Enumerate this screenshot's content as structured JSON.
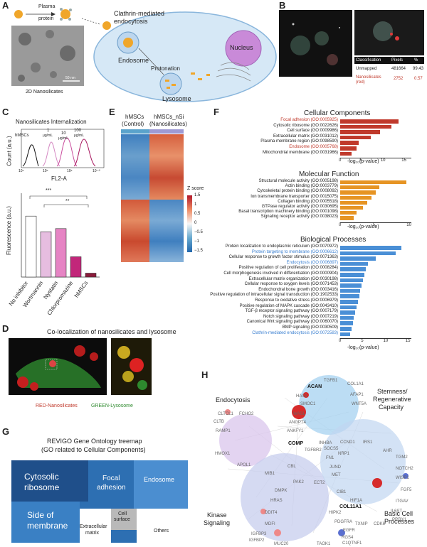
{
  "panels": {
    "a": "A",
    "b": "B",
    "c": "C",
    "d": "D",
    "e": "E",
    "f": "F",
    "g": "G",
    "h": "H"
  },
  "panel_a": {
    "plasma": "Plasma",
    "protein": "protein",
    "clathrin": "Clathrin-mediated",
    "endocytosis": "endocytosis",
    "nucleus": "Nucleus",
    "endosome": "Endosome",
    "protonation": "Protonation",
    "lysosome": "Lysosome",
    "nanosilicates": "2D Nanosilicates",
    "scale": "50 nm"
  },
  "panel_b": {
    "headers": [
      "Classification",
      "Pixels",
      "%"
    ],
    "rows": [
      {
        "c1": "Unmapped",
        "c2": "481664",
        "c3": "99.43"
      },
      {
        "c1": "Nanosilicates",
        "c1b": "(red)",
        "c2": "2752",
        "c3": "0.57"
      }
    ]
  },
  "panel_c": {
    "title": "Nanosilicates Internalization",
    "ylabel": "Count (a.u.)",
    "xlabel": "FL2-A",
    "peaks": [
      "hMSCs",
      "1",
      "μg/mL",
      "10",
      "μg/mL",
      "100",
      "μg/mL"
    ],
    "ticks": [
      "10⁴",
      "10⁵",
      "10⁶",
      "10⁷·²"
    ],
    "bar_ylabel": "Fluorescence (a.u.)",
    "sig1": "***",
    "sig2": "**",
    "bars": [
      {
        "label": "No inhibitor",
        "value": 0.78,
        "color": "#ffffff"
      },
      {
        "label": "Wortmannin",
        "value": 0.58,
        "color": "#e6bde0"
      },
      {
        "label": "Nystatin",
        "value": 0.62,
        "color": "#e684c4"
      },
      {
        "label": "Chlorpromazine",
        "value": 0.26,
        "color": "#c2277a"
      },
      {
        "label": "hMSCs",
        "value": 0.05,
        "color": "#8b1a3a"
      }
    ]
  },
  "panel_d": {
    "title": "Co-localization of nanosilicates and lysosome",
    "red": "RED-Nanosilicates",
    "green": "GREEN-Lysosome"
  },
  "panel_e": {
    "col1a": "hMSCs",
    "col1b": "(Control)",
    "col2a": "hMSCs_nSi",
    "col2b": "(Nanosilicates)",
    "zlabel": "Z score",
    "zticks": [
      "1.5",
      "1",
      "0.5",
      "0",
      "−0.5",
      "−1",
      "−1.5"
    ]
  },
  "panel_f": {
    "axis_label": "-log₁₀(p-value)",
    "cc": {
      "title": "Cellular Components",
      "color": "#c0392b",
      "ticks": [
        "0",
        "5",
        "10",
        "15"
      ],
      "xmax": 17,
      "terms": [
        {
          "label": "Focal adhesion (GO:0005925)",
          "value": 14,
          "hl": "red"
        },
        {
          "label": "Cytosolic ribosome (GO:0022626)",
          "value": 12.3,
          "hl": ""
        },
        {
          "label": "Cell surface (GO:0009986)",
          "value": 9.5,
          "hl": ""
        },
        {
          "label": "Extracellular matrix (GO:0031012)",
          "value": 7.3,
          "hl": ""
        },
        {
          "label": "Plasma membrane region (GO:0098590)",
          "value": 4.5,
          "hl": ""
        },
        {
          "label": "Endosome (GO:0005768)",
          "value": 3.9,
          "hl": "red"
        },
        {
          "label": "Mitochondrial membrane (GO:0031966)",
          "value": 2.7,
          "hl": ""
        }
      ]
    },
    "mf": {
      "title": "Molecular Function",
      "color": "#e69424",
      "ticks": [
        "0",
        "5",
        "10"
      ],
      "xmax": 10.5,
      "terms": [
        {
          "label": "Structural molecule activity (GO:0005198)",
          "value": 9.8
        },
        {
          "label": "Actin binding (GO:0003779)",
          "value": 5.8
        },
        {
          "label": "Cytoskeletal protein binding (GO:0008092)",
          "value": 5.2
        },
        {
          "label": "Ion transmembrane transporter (GO:0015075)",
          "value": 4.6
        },
        {
          "label": "Collagen binding (GO:0005518)",
          "value": 4.0
        },
        {
          "label": "GTPase regulator activity (GO:0030695)",
          "value": 3.4
        },
        {
          "label": "Basal transcription machinery binding (GO:0001098)",
          "value": 2.4
        },
        {
          "label": "Signaling receptor activity (GO:0038023)",
          "value": 2.0
        }
      ]
    },
    "bp": {
      "title": "Biological Processes",
      "color": "#4a8fd6",
      "ticks": [
        "0",
        "5",
        "10",
        "15"
      ],
      "xmax": 16,
      "terms": [
        {
          "label": "Protein localization to endoplasmic reticulum (GO:0070972)",
          "value": 13.8,
          "hl": ""
        },
        {
          "label": "Protein targeting to membrane (GO:0006612)",
          "value": 12.5,
          "hl": "blue"
        },
        {
          "label": "Cellular response to growth factor stimulus (GO:0071363)",
          "value": 8.0,
          "hl": ""
        },
        {
          "label": "Endocytosis (GO:0006897)",
          "value": 6.2,
          "hl": "blue"
        },
        {
          "label": "Positive regulation of cell proliferation (GO:0008284)",
          "value": 5.8,
          "hl": ""
        },
        {
          "label": "Cell morphogenesis involved in differentiation (GO:0000904)",
          "value": 5.4,
          "hl": ""
        },
        {
          "label": "Extracellular matrix organization (GO:0030198)",
          "value": 5.1,
          "hl": ""
        },
        {
          "label": "Cellular response to oxygen levels (GO:0071453)",
          "value": 4.8,
          "hl": ""
        },
        {
          "label": "Endochondral bone growth (GO:0003416)",
          "value": 4.5,
          "hl": ""
        },
        {
          "label": "Positive regulation of intracellular signal transduction (GO:1902533)",
          "value": 4.3,
          "hl": ""
        },
        {
          "label": "Response to oxidative stress (GO:0006979)",
          "value": 4.0,
          "hl": ""
        },
        {
          "label": "Positive regulation of MAPK cascade (GO:0043410)",
          "value": 3.7,
          "hl": ""
        },
        {
          "label": "TGF-β receptor signaling pathway (GO:0007179)",
          "value": 3.4,
          "hl": ""
        },
        {
          "label": "Notch signaling pathway (GO:0007219)",
          "value": 3.1,
          "hl": ""
        },
        {
          "label": "Canonical Wnt signaling pathway (GO:0060070)",
          "value": 2.8,
          "hl": ""
        },
        {
          "label": "BMP signaling (GO:0030509)",
          "value": 2.5,
          "hl": ""
        },
        {
          "label": "Clathrin-mediated endocytosis (GO:0072583)",
          "value": 2.2,
          "hl": "blue"
        }
      ]
    }
  },
  "panel_g": {
    "title1": "REVIGO Gene Ontology treemap",
    "title2": "(GO related to Cellular Components)",
    "cells": {
      "ribosome1": "Cytosolic",
      "ribosome2": "ribosome",
      "focal1": "Focal",
      "focal2": "adhesion",
      "endosome": "Endosome",
      "side1": "Side of",
      "side2": "membrane",
      "ecm1": "Extracellular",
      "ecm2": "matrix",
      "surface1": "Cell",
      "surface2": "surface",
      "others": "Others"
    }
  },
  "panel_h": {
    "clusters": {
      "endocytosis": "Endocytosis",
      "stem1": "Stemness/",
      "stem2": "Regenerative",
      "stem3": "Capacity",
      "kinase1": "Kinase",
      "kinase2": "Signaling",
      "basic1": "Basic Cell",
      "basic2": "Processes"
    },
    "genes": [
      {
        "name": "TGFB1",
        "bold": false
      },
      {
        "name": "ACAN",
        "bold": true
      },
      {
        "name": "COL1A1",
        "bold": false
      },
      {
        "name": "HAS1",
        "bold": false
      },
      {
        "name": "AFAP1",
        "bold": false
      },
      {
        "name": "SMOC1",
        "bold": false
      },
      {
        "name": "WNT5A",
        "bold": false
      },
      {
        "name": "CLTCL1",
        "bold": false
      },
      {
        "name": "FCHO2",
        "bold": false
      },
      {
        "name": "WASL",
        "bold": false
      },
      {
        "name": "CLTB",
        "bold": false
      },
      {
        "name": "ANGPT4",
        "bold": false
      },
      {
        "name": "RAMP1",
        "bold": false
      },
      {
        "name": "ANKFY1",
        "bold": false
      },
      {
        "name": "COMP",
        "bold": true
      },
      {
        "name": "INHBA",
        "bold": false
      },
      {
        "name": "CCND1",
        "bold": false
      },
      {
        "name": "IRS1",
        "bold": false
      },
      {
        "name": "HMOX1",
        "bold": false
      },
      {
        "name": "SOCS5",
        "bold": false
      },
      {
        "name": "AHR",
        "bold": false
      },
      {
        "name": "TGFBR2",
        "bold": false
      },
      {
        "name": "NRP1",
        "bold": false
      },
      {
        "name": "TGM2",
        "bold": false
      },
      {
        "name": "FN1",
        "bold": false
      },
      {
        "name": "APOL1",
        "bold": false
      },
      {
        "name": "CBL",
        "bold": false
      },
      {
        "name": "NOTCH2",
        "bold": false
      },
      {
        "name": "JUND",
        "bold": false
      },
      {
        "name": "MIB1",
        "bold": false
      },
      {
        "name": "PAK2",
        "bold": false
      },
      {
        "name": "ECT2",
        "bold": false
      },
      {
        "name": "MET",
        "bold": false
      },
      {
        "name": "WISP1",
        "bold": false
      },
      {
        "name": "DMPK",
        "bold": false
      },
      {
        "name": "CIB1",
        "bold": false
      },
      {
        "name": "FGF5",
        "bold": false
      },
      {
        "name": "HRAS",
        "bold": false
      },
      {
        "name": "HIF1A",
        "bold": false
      },
      {
        "name": "COL11A1",
        "bold": true
      },
      {
        "name": "ITGAV",
        "bold": false
      },
      {
        "name": "DDIT4",
        "bold": false
      },
      {
        "name": "HIPK2",
        "bold": false
      },
      {
        "name": "IL6ST",
        "bold": false
      },
      {
        "name": "PRRX1",
        "bold": false
      },
      {
        "name": "PDGFRA",
        "bold": false
      },
      {
        "name": "TXNIP",
        "bold": false
      },
      {
        "name": "CDK6",
        "bold": false
      },
      {
        "name": "MDFI",
        "bold": false
      },
      {
        "name": "EGFR",
        "bold": false
      },
      {
        "name": "IGFBP3",
        "bold": false
      },
      {
        "name": "IGFBP2",
        "bold": false
      },
      {
        "name": "RGS4",
        "bold": false
      },
      {
        "name": "MUC20",
        "bold": false
      },
      {
        "name": "TAOK1",
        "bold": false
      },
      {
        "name": "C1QTNF1",
        "bold": false
      }
    ]
  }
}
